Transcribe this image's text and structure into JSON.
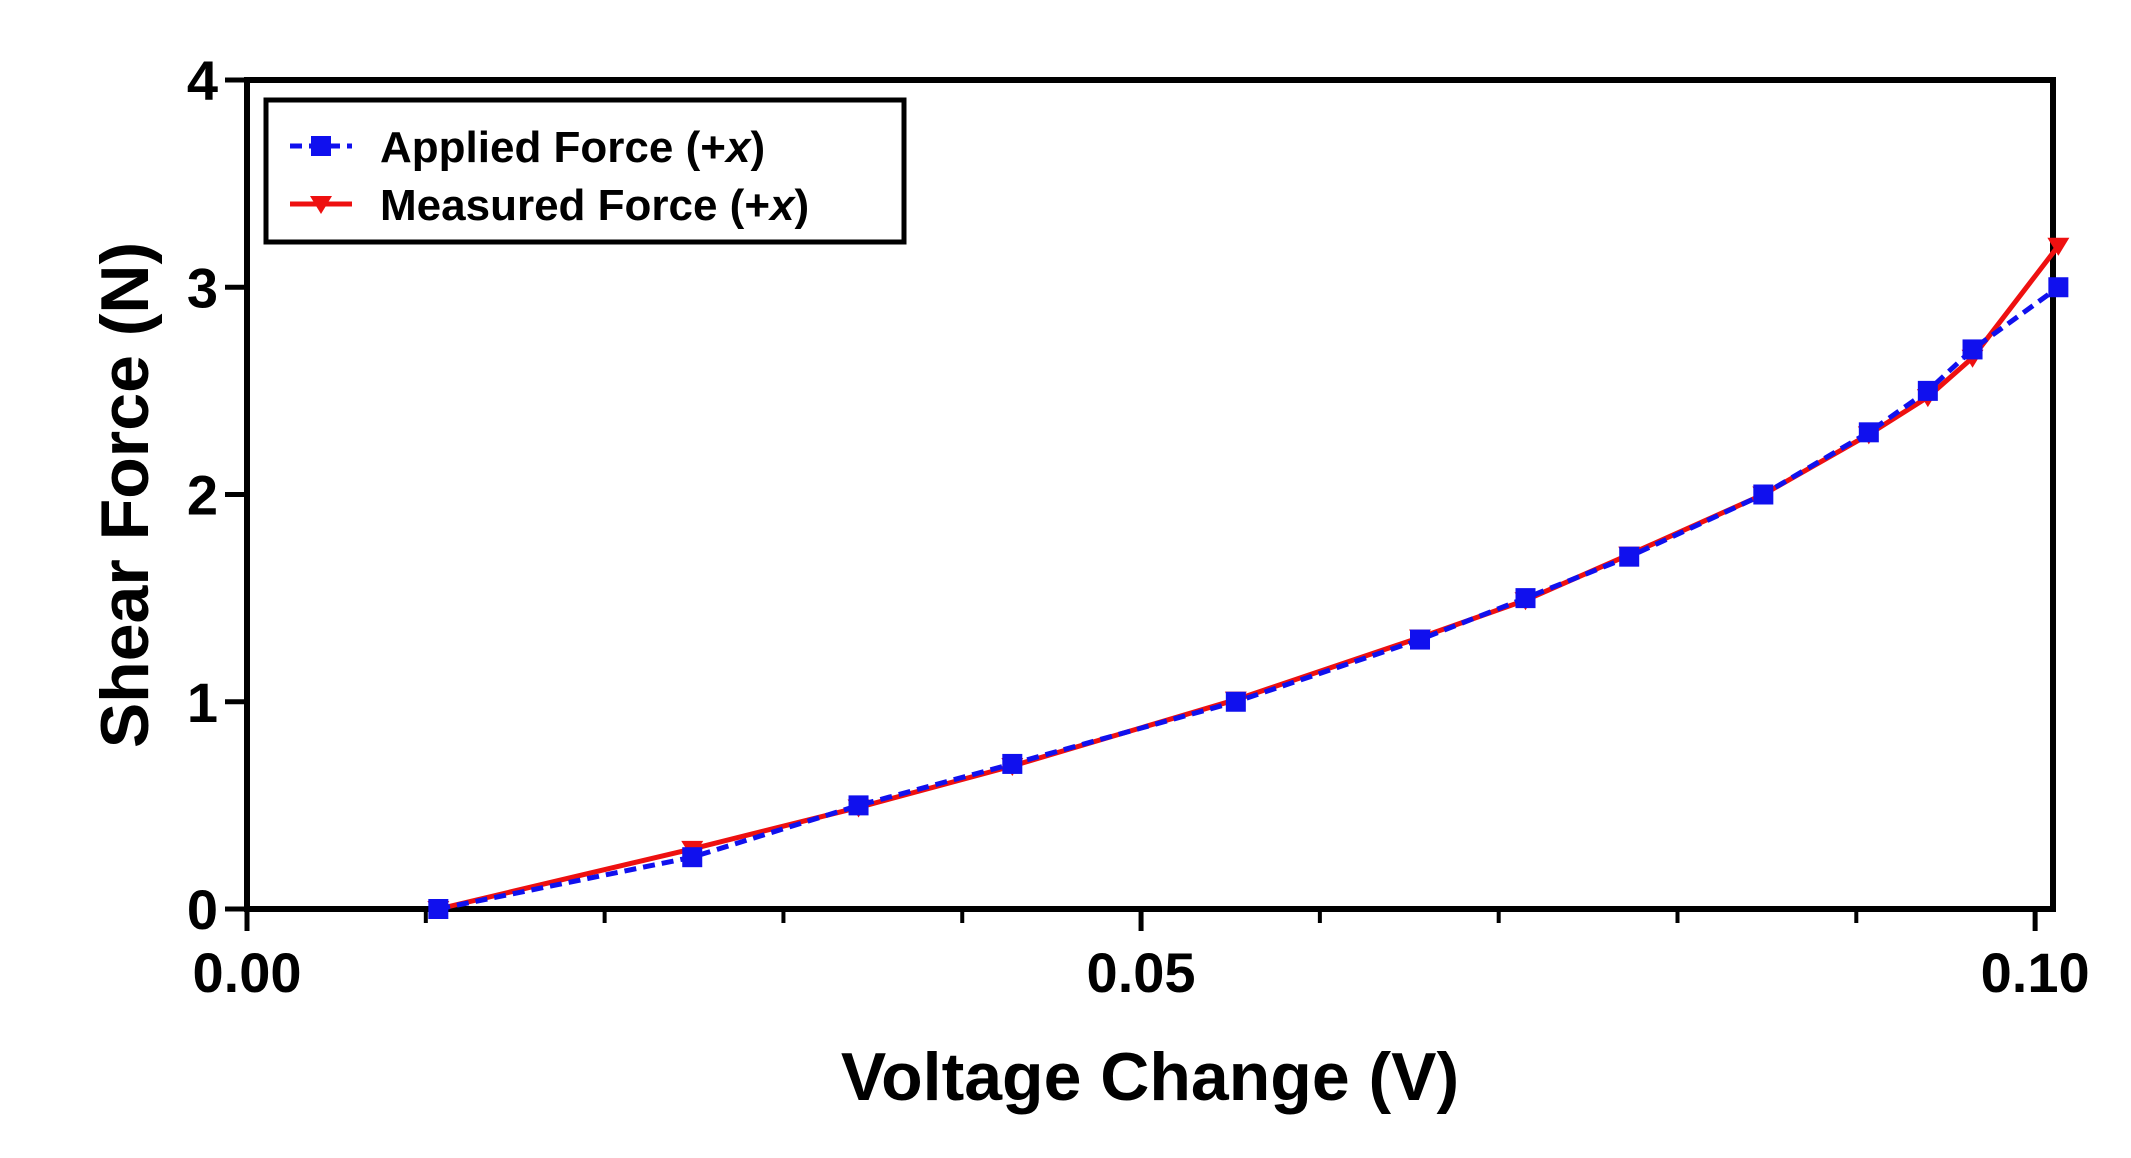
{
  "chart_data": {
    "type": "line",
    "xlabel": "Voltage Change (V)",
    "ylabel": "Shear Force (N)",
    "xlim": [
      0,
      0.101
    ],
    "ylim": [
      0,
      4
    ],
    "x_ticks": [
      {
        "value": 0.0,
        "label": "0.00"
      },
      {
        "value": 0.05,
        "label": "0.05"
      },
      {
        "value": 0.1,
        "label": "0.10"
      }
    ],
    "x_minor_ticks": [
      0.01,
      0.02,
      0.03,
      0.04,
      0.06,
      0.07,
      0.08,
      0.09
    ],
    "y_ticks": [
      {
        "value": 0,
        "label": "0"
      },
      {
        "value": 1,
        "label": "1"
      },
      {
        "value": 2,
        "label": "2"
      },
      {
        "value": 3,
        "label": "3"
      },
      {
        "value": 4,
        "label": "4"
      }
    ],
    "grid": false,
    "legend_position": "top-left",
    "series": [
      {
        "name": "Applied Force (+x)",
        "name_main": "Applied Force (+",
        "name_italic": "x",
        "name_end": ")",
        "color": "#1010ee",
        "line_style": "dashed",
        "marker": "square",
        "points": [
          [
            0.0107,
            0.0
          ],
          [
            0.0249,
            0.25
          ],
          [
            0.0342,
            0.5
          ],
          [
            0.0428,
            0.7
          ],
          [
            0.0553,
            1.0
          ],
          [
            0.0656,
            1.3
          ],
          [
            0.0715,
            1.5
          ],
          [
            0.0773,
            1.7
          ],
          [
            0.0848,
            2.0
          ],
          [
            0.0907,
            2.3
          ],
          [
            0.094,
            2.5
          ],
          [
            0.0965,
            2.7
          ],
          [
            0.1013,
            3.0
          ]
        ]
      },
      {
        "name": "Measured Force (+x)",
        "name_main": "Measured Force (+",
        "name_italic": "x",
        "name_end": ")",
        "color": "#ee1010",
        "line_style": "solid",
        "marker": "triangle-down",
        "points": [
          [
            0.0107,
            0.0
          ],
          [
            0.0249,
            0.29
          ],
          [
            0.0342,
            0.49
          ],
          [
            0.0428,
            0.69
          ],
          [
            0.0553,
            1.01
          ],
          [
            0.0656,
            1.31
          ],
          [
            0.0715,
            1.49
          ],
          [
            0.0773,
            1.71
          ],
          [
            0.0848,
            2.0
          ],
          [
            0.0907,
            2.29
          ],
          [
            0.094,
            2.47
          ],
          [
            0.0965,
            2.66
          ],
          [
            0.1013,
            3.2
          ]
        ]
      }
    ]
  }
}
